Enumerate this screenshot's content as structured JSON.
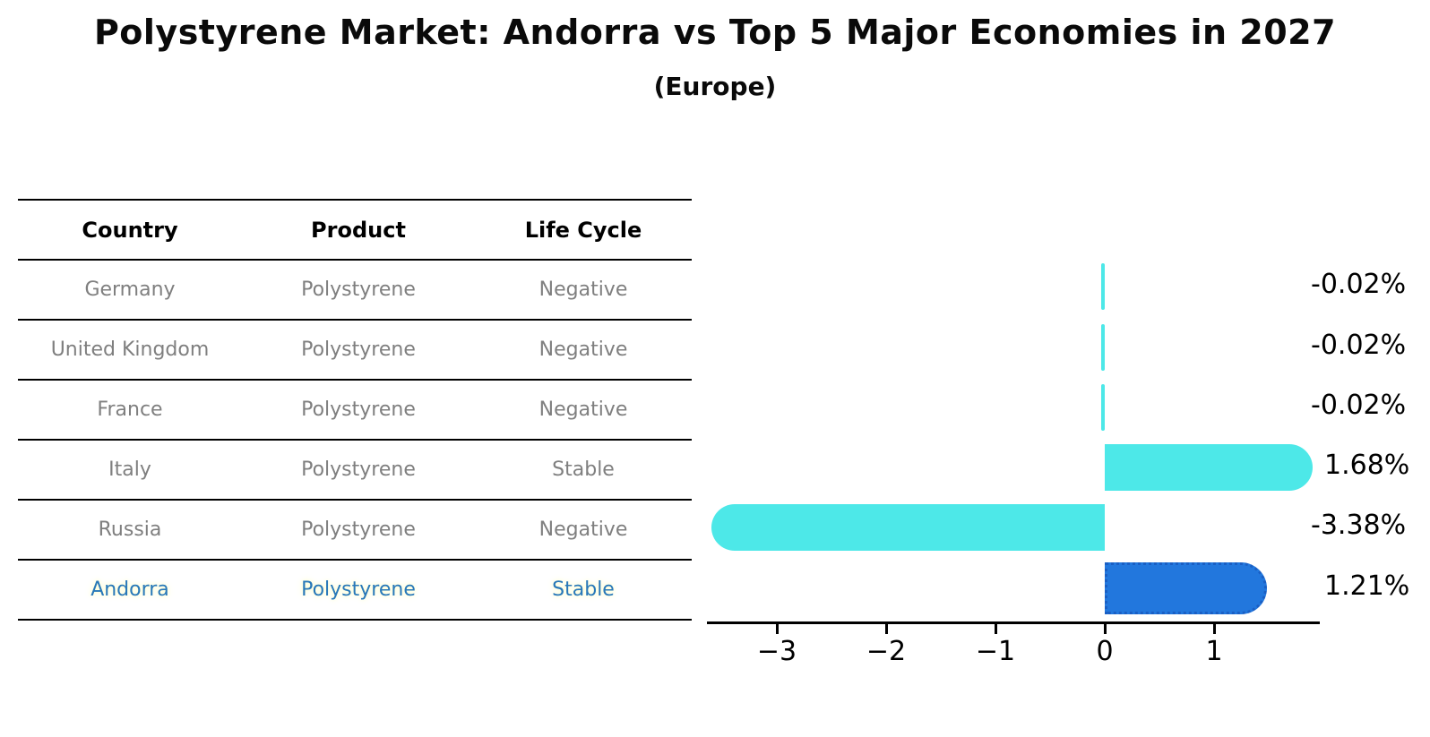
{
  "title": "Polystyrene Market: Andorra vs Top 5 Major Economies in 2027",
  "subtitle": "(Europe)",
  "table": {
    "headers": [
      "Country",
      "Product",
      "Life Cycle"
    ],
    "rows": [
      {
        "country": "Germany",
        "product": "Polystyrene",
        "life_cycle": "Negative",
        "highlight": false
      },
      {
        "country": "United Kingdom",
        "product": "Polystyrene",
        "life_cycle": "Negative",
        "highlight": false
      },
      {
        "country": "France",
        "product": "Polystyrene",
        "life_cycle": "Negative",
        "highlight": false
      },
      {
        "country": "Italy",
        "product": "Polystyrene",
        "life_cycle": "Stable",
        "highlight": false
      },
      {
        "country": "Russia",
        "product": "Polystyrene",
        "life_cycle": "Negative",
        "highlight": false
      },
      {
        "country": "Andorra",
        "product": "Polystyrene",
        "life_cycle": "Stable",
        "highlight": true
      }
    ]
  },
  "chart_data": {
    "type": "bar",
    "orientation": "horizontal",
    "title": "Polystyrene Market: Andorra vs Top 5 Major Economies in 2027",
    "subtitle": "(Europe)",
    "categories": [
      "Germany",
      "United Kingdom",
      "France",
      "Italy",
      "Russia",
      "Andorra"
    ],
    "values": [
      -0.02,
      -0.02,
      -0.02,
      1.68,
      -3.38,
      1.21
    ],
    "value_labels": [
      "-0.02%",
      "-0.02%",
      "-0.02%",
      "1.68%",
      "-3.38%",
      "1.21%"
    ],
    "highlight_category": "Andorra",
    "x_ticks": [
      -3,
      -2,
      -1,
      0,
      1
    ],
    "x_tick_labels": [
      "−3",
      "−2",
      "−1",
      "0",
      "1"
    ],
    "xlim": [
      -3.64,
      1.97
    ],
    "grid": false,
    "legend": false,
    "ylabel": "",
    "xlabel": ""
  },
  "colors": {
    "bar_default": "#4DE8E8",
    "bar_highlight": "#2277DD",
    "bar_highlight_border": "#1A5FC4",
    "table_text": "#7f7f7f",
    "table_header_text": "#000000",
    "highlight_text": "#2878B9",
    "axis": "#000000",
    "label_text": "#000000",
    "background": "#ffffff"
  }
}
